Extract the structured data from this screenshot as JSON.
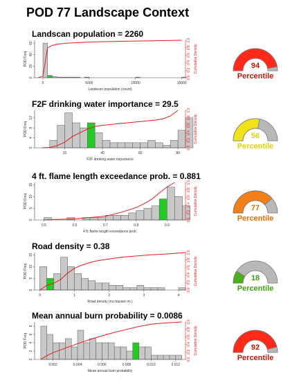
{
  "title": "POD 77 Landscape Context",
  "chart_data": [
    {
      "type": "bar",
      "title": "Landscan population = 2260",
      "xlabel": "Landscan population (count)",
      "ylabel": "POD Freq",
      "ylabel_right": "Cumulative Density",
      "xlim": [
        -900,
        15400
      ],
      "ylim": [
        0,
        65
      ],
      "x_ticks": [
        0,
        5000,
        10000,
        15000
      ],
      "x_tick_labels": [
        "0",
        "5000",
        "10000",
        "15000"
      ],
      "y_ticks": [
        0,
        20,
        40,
        60
      ],
      "y_tick_labels": [
        "0",
        "20",
        "40",
        "60"
      ],
      "right_ticks": [
        0,
        0.2,
        0.4,
        0.6,
        0.8,
        1.0
      ],
      "right_tick_labels": [
        "0.0",
        "0.2",
        "0.4",
        "0.6",
        "0.8",
        "1.0"
      ],
      "bin_start": -500,
      "bin_width": 500,
      "values": [
        0,
        60,
        4,
        2,
        1,
        1,
        1,
        1,
        1,
        0,
        1,
        0,
        0,
        0,
        0,
        0,
        0,
        0,
        0,
        0,
        0,
        1,
        0,
        0,
        0,
        0,
        0,
        0,
        0,
        0,
        0,
        1
      ],
      "highlight_bin": 2,
      "cdf": [
        [
          -500,
          0
        ],
        [
          0,
          0.04
        ],
        [
          500,
          0.8
        ],
        [
          1000,
          0.86
        ],
        [
          1500,
          0.89
        ],
        [
          2500,
          0.92
        ],
        [
          4000,
          0.94
        ],
        [
          6000,
          0.96
        ],
        [
          9000,
          0.975
        ],
        [
          12000,
          0.985
        ],
        [
          15000,
          1.0
        ]
      ],
      "percentile": 94,
      "percentile_label": "Percentile",
      "gauge_color": "#ff2a1a",
      "text_color": "#c0180c"
    },
    {
      "type": "bar",
      "title": "F2F drinking water importance = 29.5",
      "xlabel": "F2F drinking water importance",
      "ylabel": "POD Freq",
      "ylabel_right": "Cumulative Density",
      "xlim": [
        4,
        84
      ],
      "ylim": [
        0,
        15
      ],
      "x_ticks": [
        20,
        40,
        60,
        80
      ],
      "x_tick_labels": [
        "20",
        "40",
        "60",
        "80"
      ],
      "y_ticks": [
        0,
        4,
        8,
        12
      ],
      "y_tick_labels": [
        "0",
        "4",
        "8",
        "12"
      ],
      "right_ticks": [
        0,
        0.2,
        0.4,
        0.6,
        0.8,
        1.0
      ],
      "right_tick_labels": [
        "0.0",
        "0.2",
        "0.4",
        "0.6",
        "0.8",
        "1.0"
      ],
      "bin_start": 12,
      "bin_width": 4,
      "values": [
        3,
        9,
        14,
        10,
        8,
        10,
        6,
        3,
        2,
        2,
        2,
        2,
        2,
        3,
        2,
        1,
        3,
        7,
        12
      ],
      "highlight_bin": 5,
      "cdf": [
        [
          8,
          0.0
        ],
        [
          12,
          0.01
        ],
        [
          16,
          0.06
        ],
        [
          20,
          0.15
        ],
        [
          24,
          0.3
        ],
        [
          28,
          0.4
        ],
        [
          32,
          0.5
        ],
        [
          36,
          0.57
        ],
        [
          40,
          0.6
        ],
        [
          44,
          0.62
        ],
        [
          48,
          0.64
        ],
        [
          52,
          0.66
        ],
        [
          56,
          0.68
        ],
        [
          60,
          0.7
        ],
        [
          64,
          0.72
        ],
        [
          68,
          0.74
        ],
        [
          72,
          0.77
        ],
        [
          76,
          0.85
        ],
        [
          80,
          1.0
        ]
      ],
      "percentile": 56,
      "percentile_label": "Percentile",
      "gauge_color": "#f2e21b",
      "text_color": "#e3cf00"
    },
    {
      "type": "bar",
      "title": "4 ft. flame length exceedance prob. = 0.881",
      "xlabel": "4 ft. flame length exceedance prob.",
      "ylabel": "POD Freq",
      "ylabel_right": "Cumulative Density",
      "xlim": [
        0.47,
        0.96
      ],
      "ylim": [
        0,
        16
      ],
      "x_ticks": [
        0.5,
        0.6,
        0.7,
        0.8,
        0.9
      ],
      "x_tick_labels": [
        "0.5",
        "0.6",
        "0.7",
        "0.8",
        "0.9"
      ],
      "y_ticks": [
        0,
        5,
        10,
        15
      ],
      "y_tick_labels": [
        "0",
        "5",
        "10",
        "15"
      ],
      "right_ticks": [
        0,
        0.2,
        0.4,
        0.6,
        0.8,
        1.0
      ],
      "right_tick_labels": [
        "0.0",
        "0.2",
        "0.4",
        "0.6",
        "0.8",
        "1.0"
      ],
      "bin_start": 0.5,
      "bin_width": 0.025,
      "values": [
        1,
        0,
        0,
        1,
        0,
        1,
        1,
        1,
        2,
        2,
        2,
        3,
        4,
        5,
        6,
        9,
        14,
        10,
        6
      ],
      "highlight_bin": 15,
      "cdf": [
        [
          0.5,
          0.0
        ],
        [
          0.6,
          0.03
        ],
        [
          0.7,
          0.1
        ],
        [
          0.75,
          0.2
        ],
        [
          0.8,
          0.33
        ],
        [
          0.825,
          0.43
        ],
        [
          0.85,
          0.55
        ],
        [
          0.875,
          0.72
        ],
        [
          0.9,
          0.88
        ],
        [
          0.925,
          1.0
        ]
      ],
      "percentile": 77,
      "percentile_label": "Percentile",
      "gauge_color": "#f28018",
      "text_color": "#e06e00"
    },
    {
      "type": "bar",
      "title": "Road density = 0.38",
      "xlabel": "Road density (mi./square mi.)",
      "ylabel": "POD Freq",
      "ylabel_right": "Cumulative Density",
      "xlim": [
        -0.15,
        4.2
      ],
      "ylim": [
        0,
        16
      ],
      "x_ticks": [
        0,
        1,
        2,
        3,
        4
      ],
      "x_tick_labels": [
        "0",
        "1",
        "2",
        "3",
        "4"
      ],
      "y_ticks": [
        0,
        5,
        10,
        15
      ],
      "y_tick_labels": [
        "0",
        "5",
        "10",
        "15"
      ],
      "right_ticks": [
        0,
        0.2,
        0.4,
        0.6,
        0.8,
        1.0
      ],
      "right_tick_labels": [
        "0.0",
        "0.2",
        "0.4",
        "0.6",
        "0.8",
        "1.0"
      ],
      "bin_start": 0,
      "bin_width": 0.2,
      "values": [
        10,
        5,
        7,
        14,
        10,
        7,
        5,
        4,
        3,
        3,
        2,
        2,
        1,
        1,
        2,
        1,
        1,
        1,
        0,
        0,
        1
      ],
      "highlight_bin": 1,
      "cdf": [
        [
          0,
          0.0
        ],
        [
          0.2,
          0.12
        ],
        [
          0.4,
          0.18
        ],
        [
          0.6,
          0.28
        ],
        [
          0.8,
          0.45
        ],
        [
          1.0,
          0.58
        ],
        [
          1.2,
          0.66
        ],
        [
          1.4,
          0.72
        ],
        [
          1.6,
          0.77
        ],
        [
          1.8,
          0.8
        ],
        [
          2.0,
          0.83
        ],
        [
          2.4,
          0.88
        ],
        [
          2.8,
          0.91
        ],
        [
          3.2,
          0.94
        ],
        [
          3.6,
          0.96
        ],
        [
          4.2,
          1.0
        ]
      ],
      "percentile": 18,
      "percentile_label": "Percentile",
      "gauge_color": "#4caf1c",
      "text_color": "#3c9e10"
    },
    {
      "type": "bar",
      "title": "Mean annual burn probability = 0.0086",
      "xlabel": "Mean annual burn probability",
      "ylabel": "POD Freq",
      "ylabel_right": "Cumulative Density",
      "xlim": [
        0.0005,
        0.0128
      ],
      "ylim": [
        0,
        9
      ],
      "x_ticks": [
        0.002,
        0.004,
        0.006,
        0.008,
        0.01,
        0.012
      ],
      "x_tick_labels": [
        "0.002",
        "0.004",
        "0.006",
        "0.008",
        "0.010",
        "0.012"
      ],
      "y_ticks": [
        0,
        2,
        4,
        6,
        8
      ],
      "y_tick_labels": [
        "0",
        "2",
        "4",
        "6",
        "8"
      ],
      "right_ticks": [
        0,
        0.2,
        0.4,
        0.6,
        0.8,
        1.0
      ],
      "right_tick_labels": [
        "0.0",
        "0.2",
        "0.4",
        "0.6",
        "0.8",
        "1.0"
      ],
      "bin_start": 0.001,
      "bin_width": 0.0005,
      "values": [
        8,
        6,
        4,
        4,
        5,
        3,
        7,
        4,
        5,
        4,
        4,
        4,
        3,
        3,
        2,
        4,
        3,
        3,
        1,
        1,
        1,
        1,
        1
      ],
      "highlight_bin": 15,
      "cdf": [
        [
          0.001,
          0.0
        ],
        [
          0.0015,
          0.1
        ],
        [
          0.002,
          0.18
        ],
        [
          0.003,
          0.3
        ],
        [
          0.004,
          0.42
        ],
        [
          0.005,
          0.53
        ],
        [
          0.006,
          0.63
        ],
        [
          0.007,
          0.72
        ],
        [
          0.008,
          0.8
        ],
        [
          0.009,
          0.88
        ],
        [
          0.01,
          0.94
        ],
        [
          0.011,
          0.97
        ],
        [
          0.0125,
          1.0
        ]
      ],
      "percentile": 92,
      "percentile_label": "Percentile",
      "gauge_color": "#ff2a1a",
      "text_color": "#c0180c"
    }
  ]
}
